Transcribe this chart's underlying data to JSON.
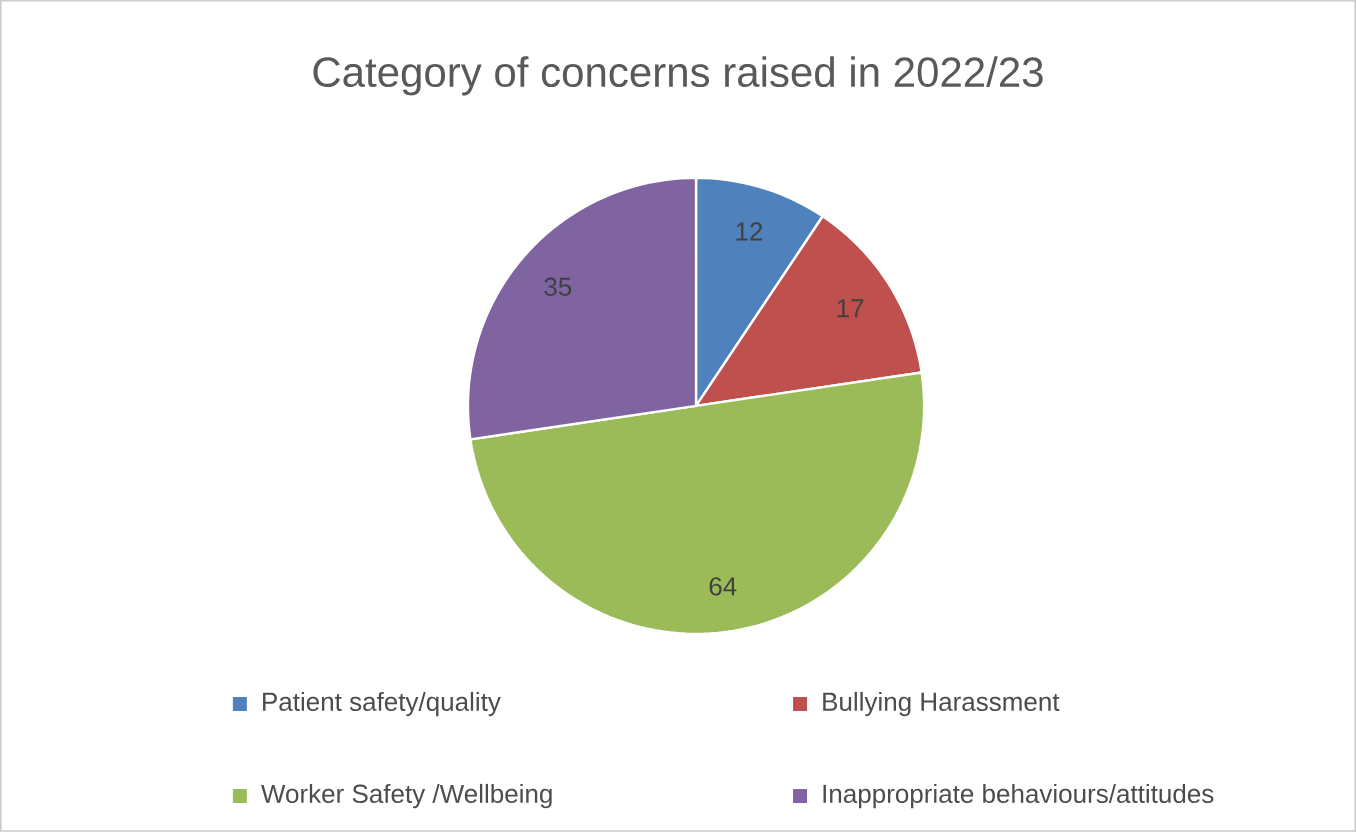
{
  "chart_data": {
    "type": "pie",
    "title": "Category of concerns raised in 2022/23",
    "categories": [
      "Patient safety/quality",
      "Bullying Harassment",
      "Worker Safety /Wellbeing",
      "Inappropriate behaviours/attitudes"
    ],
    "values": [
      12,
      17,
      64,
      35
    ],
    "colors": [
      "#4f81bd",
      "#c0504d",
      "#9bbb59",
      "#8064a2"
    ],
    "data_labels": true,
    "legend": "bottom"
  }
}
